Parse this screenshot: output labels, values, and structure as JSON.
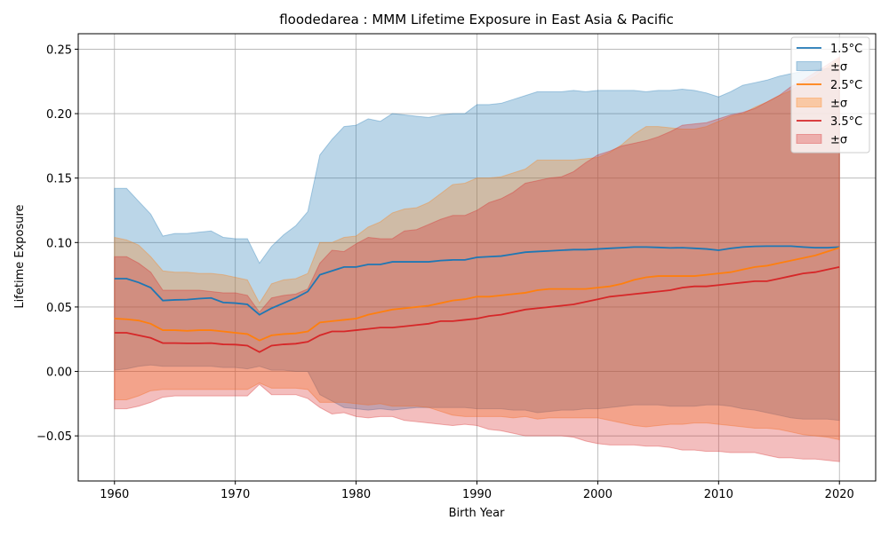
{
  "chart_data": {
    "type": "area",
    "title": "floodedarea : MMM Lifetime Exposure in East Asia & Pacific",
    "xlabel": "Birth Year",
    "ylabel": "Lifetime Exposure",
    "xlim": [
      1957,
      2023
    ],
    "ylim": [
      -0.085,
      0.262
    ],
    "xticks": [
      1960,
      1970,
      1980,
      1990,
      2000,
      2010,
      2020
    ],
    "xtick_labels": [
      "1960",
      "1970",
      "1980",
      "1990",
      "2000",
      "2010",
      "2020"
    ],
    "yticks": [
      -0.05,
      0.0,
      0.05,
      0.1,
      0.15,
      0.2,
      0.25
    ],
    "ytick_labels": [
      "−0.05",
      "0.00",
      "0.05",
      "0.10",
      "0.15",
      "0.20",
      "0.25"
    ],
    "grid": true,
    "legend_position": "top-right",
    "x": [
      1960,
      1961,
      1962,
      1963,
      1964,
      1965,
      1966,
      1967,
      1968,
      1969,
      1970,
      1971,
      1972,
      1973,
      1974,
      1975,
      1976,
      1977,
      1978,
      1979,
      1980,
      1981,
      1982,
      1983,
      1984,
      1985,
      1986,
      1987,
      1988,
      1989,
      1990,
      1991,
      1992,
      1993,
      1994,
      1995,
      1996,
      1997,
      1998,
      1999,
      2000,
      2001,
      2002,
      2003,
      2004,
      2005,
      2006,
      2007,
      2008,
      2009,
      2010,
      2011,
      2012,
      2013,
      2014,
      2015,
      2016,
      2017,
      2018,
      2019,
      2020
    ],
    "series": [
      {
        "name": "1.5°C",
        "band_name": "±σ",
        "color": "#1f77b4",
        "mean": [
          0.072,
          0.072,
          0.069,
          0.065,
          0.055,
          0.0555,
          0.0557,
          0.0565,
          0.057,
          0.0535,
          0.053,
          0.052,
          0.044,
          0.049,
          0.053,
          0.057,
          0.062,
          0.075,
          0.078,
          0.081,
          0.081,
          0.083,
          0.083,
          0.085,
          0.085,
          0.085,
          0.085,
          0.086,
          0.0865,
          0.0865,
          0.0885,
          0.089,
          0.0895,
          0.091,
          0.0925,
          0.093,
          0.0935,
          0.094,
          0.0945,
          0.0945,
          0.095,
          0.0955,
          0.096,
          0.0965,
          0.0965,
          0.0962,
          0.0958,
          0.096,
          0.0955,
          0.095,
          0.094,
          0.0955,
          0.0965,
          0.097,
          0.0972,
          0.0972,
          0.0972,
          0.0965,
          0.096,
          0.096,
          0.0965
        ],
        "upper": [
          0.142,
          0.142,
          0.132,
          0.122,
          0.105,
          0.107,
          0.107,
          0.108,
          0.109,
          0.104,
          0.103,
          0.103,
          0.084,
          0.097,
          0.106,
          0.113,
          0.124,
          0.168,
          0.18,
          0.19,
          0.191,
          0.196,
          0.194,
          0.2,
          0.199,
          0.198,
          0.197,
          0.199,
          0.2,
          0.2,
          0.207,
          0.207,
          0.208,
          0.211,
          0.214,
          0.217,
          0.217,
          0.217,
          0.218,
          0.217,
          0.218,
          0.218,
          0.218,
          0.218,
          0.217,
          0.218,
          0.218,
          0.219,
          0.218,
          0.216,
          0.213,
          0.217,
          0.222,
          0.224,
          0.226,
          0.229,
          0.231,
          0.233,
          0.234,
          0.235,
          0.236
        ],
        "lower": [
          0.001,
          0.002,
          0.004,
          0.005,
          0.004,
          0.004,
          0.004,
          0.004,
          0.004,
          0.003,
          0.003,
          0.002,
          0.004,
          0.001,
          0.001,
          0.0,
          0.0,
          -0.018,
          -0.023,
          -0.028,
          -0.029,
          -0.03,
          -0.029,
          -0.03,
          -0.029,
          -0.028,
          -0.028,
          -0.028,
          -0.028,
          -0.028,
          -0.029,
          -0.029,
          -0.029,
          -0.03,
          -0.03,
          -0.032,
          -0.031,
          -0.03,
          -0.03,
          -0.029,
          -0.029,
          -0.028,
          -0.027,
          -0.026,
          -0.026,
          -0.026,
          -0.027,
          -0.027,
          -0.027,
          -0.026,
          -0.026,
          -0.027,
          -0.029,
          -0.03,
          -0.032,
          -0.034,
          -0.036,
          -0.037,
          -0.037,
          -0.037,
          -0.038
        ]
      },
      {
        "name": "2.5°C",
        "band_name": "±σ",
        "color": "#ff7f0e",
        "mean": [
          0.041,
          0.0405,
          0.0395,
          0.037,
          0.032,
          0.032,
          0.0315,
          0.032,
          0.032,
          0.031,
          0.03,
          0.029,
          0.024,
          0.028,
          0.029,
          0.0295,
          0.031,
          0.038,
          0.039,
          0.04,
          0.041,
          0.044,
          0.046,
          0.048,
          0.049,
          0.05,
          0.051,
          0.053,
          0.055,
          0.056,
          0.058,
          0.058,
          0.059,
          0.06,
          0.061,
          0.063,
          0.064,
          0.064,
          0.064,
          0.064,
          0.065,
          0.066,
          0.068,
          0.071,
          0.073,
          0.074,
          0.074,
          0.074,
          0.074,
          0.075,
          0.076,
          0.077,
          0.079,
          0.081,
          0.082,
          0.084,
          0.086,
          0.088,
          0.09,
          0.093,
          0.096
        ],
        "upper": [
          0.104,
          0.102,
          0.098,
          0.089,
          0.078,
          0.077,
          0.077,
          0.076,
          0.076,
          0.075,
          0.073,
          0.071,
          0.053,
          0.068,
          0.071,
          0.072,
          0.076,
          0.1,
          0.1,
          0.104,
          0.105,
          0.112,
          0.116,
          0.123,
          0.126,
          0.127,
          0.131,
          0.138,
          0.145,
          0.146,
          0.15,
          0.15,
          0.151,
          0.154,
          0.157,
          0.164,
          0.164,
          0.164,
          0.164,
          0.165,
          0.166,
          0.17,
          0.176,
          0.184,
          0.19,
          0.19,
          0.189,
          0.188,
          0.188,
          0.19,
          0.194,
          0.198,
          0.2,
          0.205,
          0.209,
          0.214,
          0.218,
          0.224,
          0.229,
          0.236,
          0.243
        ],
        "lower": [
          -0.022,
          -0.022,
          -0.019,
          -0.015,
          -0.014,
          -0.014,
          -0.014,
          -0.014,
          -0.014,
          -0.014,
          -0.014,
          -0.014,
          -0.009,
          -0.013,
          -0.013,
          -0.013,
          -0.014,
          -0.024,
          -0.024,
          -0.024,
          -0.025,
          -0.026,
          -0.025,
          -0.027,
          -0.027,
          -0.027,
          -0.028,
          -0.031,
          -0.034,
          -0.035,
          -0.035,
          -0.035,
          -0.035,
          -0.036,
          -0.035,
          -0.037,
          -0.036,
          -0.036,
          -0.036,
          -0.036,
          -0.036,
          -0.038,
          -0.04,
          -0.042,
          -0.043,
          -0.042,
          -0.041,
          -0.041,
          -0.04,
          -0.04,
          -0.041,
          -0.042,
          -0.043,
          -0.044,
          -0.044,
          -0.045,
          -0.047,
          -0.049,
          -0.05,
          -0.051,
          -0.053
        ]
      },
      {
        "name": "3.5°C",
        "band_name": "±σ",
        "color": "#d62728",
        "mean": [
          0.03,
          0.03,
          0.028,
          0.026,
          0.022,
          0.022,
          0.0218,
          0.0218,
          0.022,
          0.021,
          0.0208,
          0.02,
          0.015,
          0.02,
          0.021,
          0.0215,
          0.023,
          0.028,
          0.031,
          0.031,
          0.032,
          0.033,
          0.034,
          0.034,
          0.035,
          0.036,
          0.037,
          0.039,
          0.039,
          0.04,
          0.041,
          0.043,
          0.044,
          0.046,
          0.048,
          0.049,
          0.05,
          0.051,
          0.052,
          0.054,
          0.056,
          0.058,
          0.059,
          0.06,
          0.061,
          0.062,
          0.063,
          0.065,
          0.066,
          0.066,
          0.067,
          0.068,
          0.069,
          0.07,
          0.07,
          0.072,
          0.074,
          0.076,
          0.077,
          0.079,
          0.081
        ],
        "upper": [
          0.089,
          0.089,
          0.084,
          0.077,
          0.063,
          0.063,
          0.063,
          0.063,
          0.062,
          0.061,
          0.061,
          0.059,
          0.046,
          0.057,
          0.059,
          0.06,
          0.064,
          0.084,
          0.094,
          0.093,
          0.099,
          0.104,
          0.103,
          0.103,
          0.109,
          0.11,
          0.114,
          0.118,
          0.121,
          0.121,
          0.125,
          0.131,
          0.134,
          0.139,
          0.146,
          0.148,
          0.15,
          0.151,
          0.155,
          0.162,
          0.168,
          0.171,
          0.175,
          0.177,
          0.179,
          0.182,
          0.186,
          0.191,
          0.192,
          0.193,
          0.196,
          0.199,
          0.201,
          0.204,
          0.209,
          0.214,
          0.221,
          0.226,
          0.232,
          0.238,
          0.244
        ],
        "lower": [
          -0.029,
          -0.029,
          -0.027,
          -0.024,
          -0.02,
          -0.019,
          -0.019,
          -0.019,
          -0.019,
          -0.019,
          -0.019,
          -0.019,
          -0.01,
          -0.018,
          -0.018,
          -0.018,
          -0.021,
          -0.028,
          -0.033,
          -0.032,
          -0.035,
          -0.036,
          -0.035,
          -0.035,
          -0.038,
          -0.039,
          -0.04,
          -0.041,
          -0.042,
          -0.041,
          -0.042,
          -0.045,
          -0.046,
          -0.048,
          -0.05,
          -0.05,
          -0.05,
          -0.05,
          -0.051,
          -0.054,
          -0.056,
          -0.057,
          -0.057,
          -0.057,
          -0.058,
          -0.058,
          -0.059,
          -0.061,
          -0.061,
          -0.062,
          -0.062,
          -0.063,
          -0.063,
          -0.063,
          -0.065,
          -0.067,
          -0.067,
          -0.068,
          -0.068,
          -0.069,
          -0.07
        ]
      }
    ]
  }
}
